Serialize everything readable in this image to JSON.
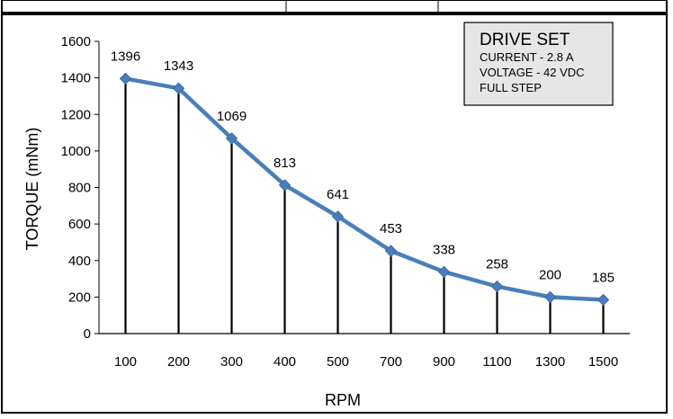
{
  "chart_data": {
    "type": "line",
    "categories": [
      "100",
      "200",
      "300",
      "400",
      "500",
      "700",
      "900",
      "1100",
      "1300",
      "1500"
    ],
    "series": [
      {
        "values": [
          1396,
          1343,
          1069,
          813,
          641,
          453,
          338,
          258,
          200,
          185
        ]
      }
    ],
    "data_labels": [
      "1396",
      "1343",
      "1069",
      "813",
      "641",
      "453",
      "338",
      "258",
      "200",
      "185"
    ],
    "xlabel": "RPM",
    "ylabel": "TORQUE (mNm)",
    "ylim": [
      0,
      1600
    ],
    "yticks": [
      "0",
      "200",
      "400",
      "600",
      "800",
      "1000",
      "1200",
      "1400",
      "1600"
    ],
    "drop_lines": true,
    "grid": false,
    "legend": "none",
    "annotation_box": {
      "title": "DRIVE SET",
      "lines": [
        "CURRENT - 2.8 A",
        "VOLTAGE - 42 VDC",
        "FULL STEP"
      ],
      "position": "top-right"
    },
    "colors": {
      "line": "#4a7ebb",
      "marker": "#4a7ebb",
      "drop_line": "#000000",
      "box_fill": "#e6e6e6",
      "frame": "#000000"
    }
  }
}
